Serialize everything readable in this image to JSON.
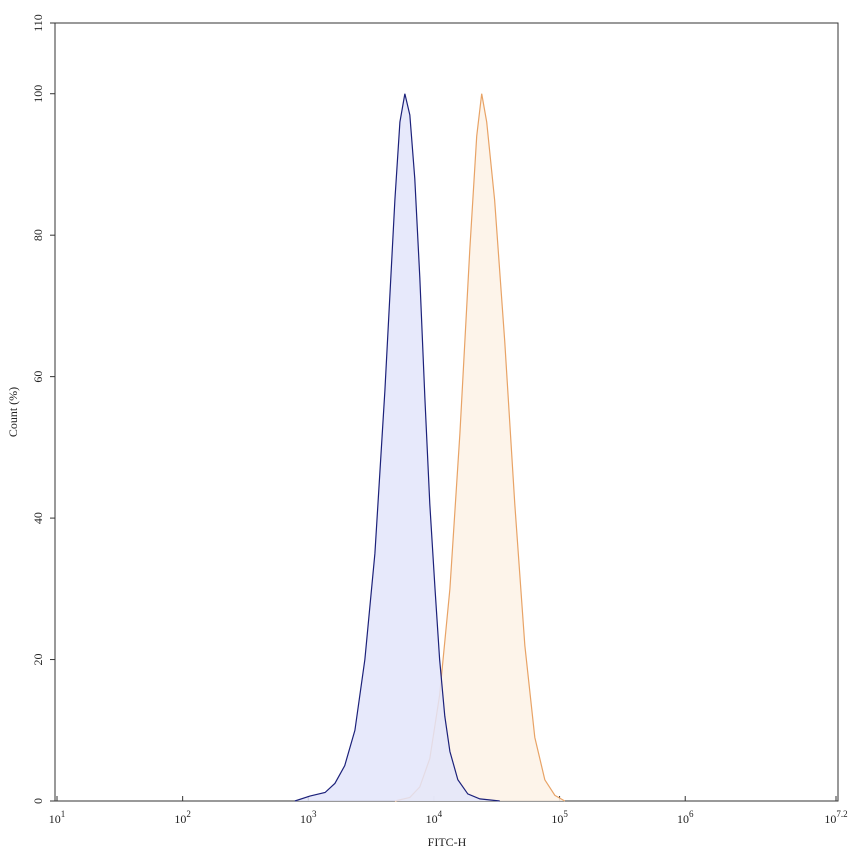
{
  "chart_data": {
    "type": "area",
    "xlabel": "FITC-H",
    "ylabel": "Count  (%)",
    "xscale": "log",
    "xlim": [
      10,
      15848931.9
    ],
    "xticks": [
      {
        "value": 10,
        "label": "10",
        "exponent": "1"
      },
      {
        "value": 100,
        "label": "10",
        "exponent": "2"
      },
      {
        "value": 1000,
        "label": "10",
        "exponent": "3"
      },
      {
        "value": 10000,
        "label": "10",
        "exponent": "4"
      },
      {
        "value": 100000,
        "label": "10",
        "exponent": "5"
      },
      {
        "value": 1000000,
        "label": "10",
        "exponent": "6"
      },
      {
        "value": 15848931.9,
        "label": "10",
        "exponent": "7.2"
      }
    ],
    "ylim": [
      0,
      110
    ],
    "yticks": [
      0,
      20,
      40,
      60,
      80,
      100,
      110
    ],
    "series": [
      {
        "color": "#e8a366",
        "fill": "#fdf2e6",
        "x": [
          4890,
          6430,
          7720,
          9270,
          11100,
          13400,
          16100,
          19300,
          21900,
          24000,
          26300,
          30400,
          36600,
          44000,
          52900,
          63500,
          76300,
          91700,
          110000
        ],
        "values": [
          0,
          0.5,
          2,
          6,
          15,
          30,
          52,
          78,
          94,
          100,
          96,
          85,
          65,
          42,
          22,
          9,
          3,
          0.8,
          0
        ]
      },
      {
        "color": "#1c217a",
        "fill": "#e3e5fa",
        "x": [
          782,
          1030,
          1360,
          1630,
          1950,
          2350,
          2820,
          3390,
          4070,
          4890,
          5360,
          5870,
          6430,
          7040,
          7720,
          8470,
          9270,
          10200,
          11100,
          12200,
          13400,
          15500,
          18600,
          23200,
          33400
        ],
        "values": [
          0,
          0.7,
          1.2,
          2.5,
          5,
          10,
          20,
          35,
          58,
          85,
          96,
          100,
          97,
          88,
          74,
          57,
          42,
          30,
          20,
          12,
          7,
          3,
          1,
          0.3,
          0
        ]
      }
    ]
  }
}
